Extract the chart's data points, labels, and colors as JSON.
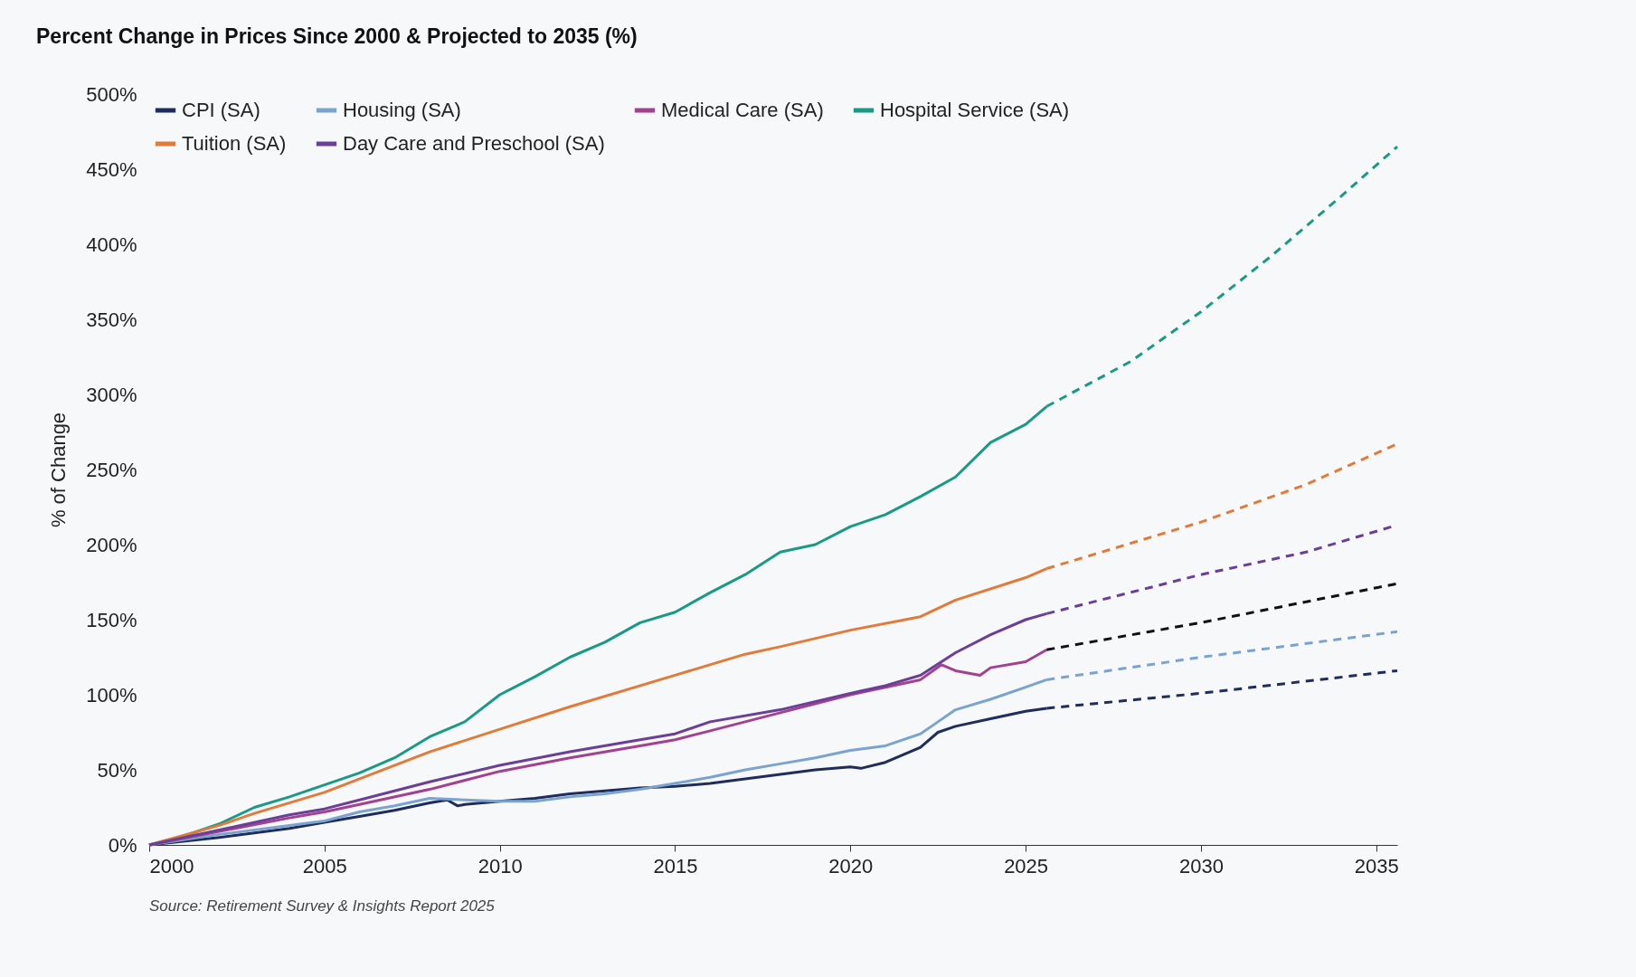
{
  "chart_data": {
    "type": "line",
    "title": "Percent Change in Prices Since 2000 & Projected to 2035 (%)",
    "ylabel": "% of Change",
    "annotations": [
      "Source: Retirement Survey & Insights Report 2025"
    ],
    "xlim": [
      2000,
      2035.6
    ],
    "xticks": [
      2000,
      2005,
      2010,
      2015,
      2020,
      2025,
      2030,
      2035
    ],
    "ylim": [
      0,
      500
    ],
    "yticks": [
      {
        "value": 0,
        "label": "0%"
      },
      {
        "value": 50,
        "label": "50%"
      },
      {
        "value": 100,
        "label": "100%"
      },
      {
        "value": 150,
        "label": "150%"
      },
      {
        "value": 200,
        "label": "200%"
      },
      {
        "value": 250,
        "label": "250%"
      },
      {
        "value": 300,
        "label": "300%"
      },
      {
        "value": 350,
        "label": "350%"
      },
      {
        "value": 400,
        "label": "400%"
      },
      {
        "value": 450,
        "label": "450%"
      },
      {
        "value": 500,
        "label": "500%"
      }
    ],
    "grid": false,
    "legend": "top left",
    "line_style": "solid",
    "series": [
      {
        "name": "CPI (SA)",
        "color": "#1f2d5c",
        "x": [
          2000,
          2002,
          2004,
          2005,
          2006,
          2007,
          2008,
          2008.5,
          2008.8,
          2009,
          2010,
          2011,
          2012,
          2013,
          2014,
          2015,
          2016,
          2017,
          2018,
          2019,
          2020,
          2020.3,
          2021,
          2022,
          2022.5,
          2023,
          2024,
          2025,
          2025.6
        ],
        "values": [
          0,
          5,
          11,
          15,
          19,
          23,
          28,
          30,
          26,
          27,
          29,
          31,
          34,
          36,
          38,
          39,
          41,
          44,
          47,
          50,
          52,
          51,
          55,
          65,
          75,
          79,
          84,
          89,
          91
        ]
      },
      {
        "name": "Housing (SA)",
        "color": "#7ba3d0",
        "x": [
          2000,
          2002,
          2004,
          2005,
          2006,
          2007,
          2008,
          2009,
          2010,
          2011,
          2012,
          2013,
          2014,
          2015,
          2016,
          2017,
          2018,
          2019,
          2020,
          2021,
          2022,
          2022.5,
          2023,
          2024,
          2025,
          2025.6
        ],
        "values": [
          0,
          7,
          13,
          16,
          22,
          26,
          31,
          30,
          29,
          29,
          32,
          34,
          37,
          41,
          45,
          50,
          54,
          58,
          63,
          66,
          74,
          82,
          90,
          97,
          105,
          110
        ]
      },
      {
        "name": "Medical Care (SA)",
        "color": "#a2418f",
        "x": [
          2000,
          2002,
          2004,
          2005,
          2006,
          2008,
          2010,
          2012,
          2014,
          2015,
          2016,
          2018,
          2020,
          2021,
          2022,
          2022.6,
          2023,
          2023.7,
          2024,
          2025,
          2025.6
        ],
        "values": [
          0,
          9,
          18,
          22,
          27,
          37,
          49,
          58,
          66,
          70,
          76,
          88,
          100,
          105,
          110,
          120,
          116,
          113,
          118,
          122,
          130
        ]
      },
      {
        "name": "Hospital Service (SA)",
        "color": "#1a9985",
        "x": [
          2000,
          2001,
          2002,
          2003,
          2004,
          2005,
          2006,
          2007,
          2008,
          2009,
          2010,
          2011,
          2012,
          2013,
          2014,
          2015,
          2016,
          2017,
          2018,
          2019,
          2020,
          2021,
          2022,
          2023,
          2024,
          2025,
          2025.6
        ],
        "values": [
          0,
          6,
          14,
          25,
          32,
          40,
          48,
          58,
          72,
          82,
          100,
          112,
          125,
          135,
          148,
          155,
          168,
          180,
          195,
          200,
          212,
          220,
          232,
          245,
          268,
          280,
          292
        ]
      },
      {
        "name": "Tuition (SA)",
        "color": "#e07b39",
        "x": [
          2000,
          2002,
          2003,
          2005,
          2008,
          2010,
          2012,
          2015,
          2017,
          2018,
          2020,
          2022,
          2023,
          2025,
          2025.6
        ],
        "values": [
          0,
          13,
          21,
          35,
          62,
          77,
          92,
          113,
          127,
          132,
          143,
          152,
          163,
          178,
          184
        ]
      },
      {
        "name": "Day Care and Preschool (SA)",
        "color": "#6b3f98",
        "x": [
          2000,
          2002,
          2004,
          2005,
          2006,
          2008,
          2010,
          2012,
          2014,
          2015,
          2016,
          2018,
          2020,
          2021,
          2022,
          2023,
          2024,
          2025,
          2025.6
        ],
        "values": [
          0,
          10,
          20,
          24,
          30,
          42,
          53,
          62,
          70,
          74,
          82,
          90,
          101,
          106,
          113,
          128,
          140,
          150,
          154
        ]
      },
      {
        "color": "#1a9985",
        "line_style": "dashed",
        "x": [
          2025.6,
          2028,
          2030,
          2032,
          2034,
          2035.6
        ],
        "values": [
          292,
          322,
          355,
          392,
          432,
          465
        ]
      },
      {
        "color": "#e07b39",
        "line_style": "dashed",
        "x": [
          2025.6,
          2030,
          2033,
          2035.6
        ],
        "values": [
          184,
          215,
          240,
          267
        ]
      },
      {
        "color": "#6b3f98",
        "line_style": "dashed",
        "x": [
          2025.6,
          2030,
          2033,
          2035.6
        ],
        "values": [
          154,
          180,
          195,
          213
        ]
      },
      {
        "color": "#111111",
        "line_style": "dashed",
        "x": [
          2025.6,
          2030,
          2035.6
        ],
        "values": [
          130,
          148,
          174
        ]
      },
      {
        "color": "#7ba3d0",
        "line_style": "dashed",
        "x": [
          2025.6,
          2030,
          2035.6
        ],
        "values": [
          110,
          125,
          142
        ]
      },
      {
        "color": "#1f2d5c",
        "line_style": "dashed",
        "x": [
          2025.6,
          2030,
          2035.6
        ],
        "values": [
          91,
          101,
          116
        ]
      }
    ]
  }
}
